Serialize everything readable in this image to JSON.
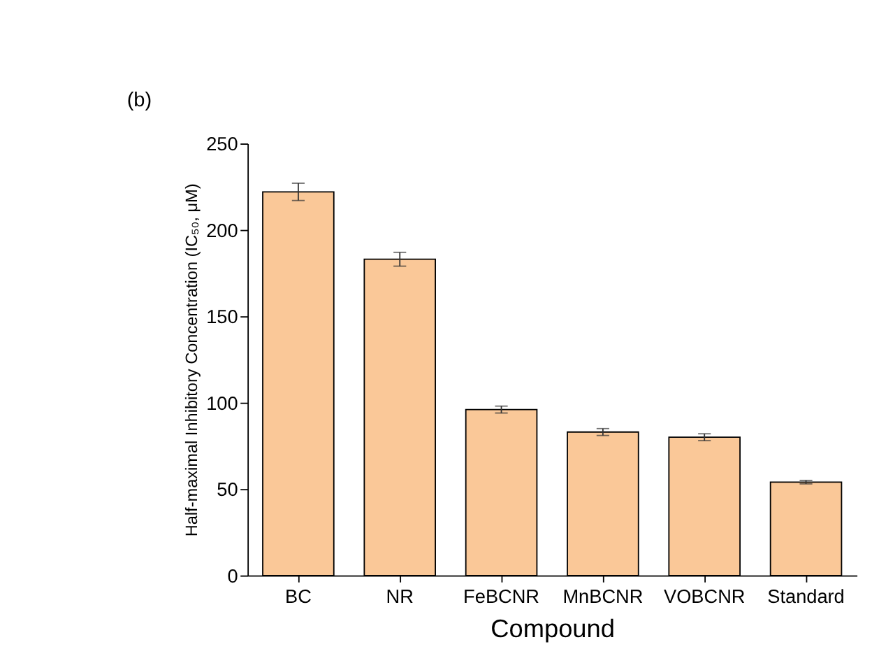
{
  "chart_data": {
    "type": "bar",
    "xlabel": "Compound",
    "ylabel": "Half-maximal Inhibitory Concentration (IC₅₀, μM)",
    "categories": [
      "BC",
      "NR",
      "FeBCNR",
      "MnBCNR",
      "VOBCNR",
      "Standard"
    ],
    "values": [
      222,
      183,
      96,
      83,
      80,
      54
    ],
    "errors": [
      5,
      4,
      2,
      2,
      2,
      1
    ],
    "color": "#fac898",
    "ylim": [
      0,
      250
    ],
    "yticks": [
      0,
      50,
      100,
      150,
      200,
      250
    ],
    "grid": false,
    "annotations": [
      "(b)"
    ]
  }
}
